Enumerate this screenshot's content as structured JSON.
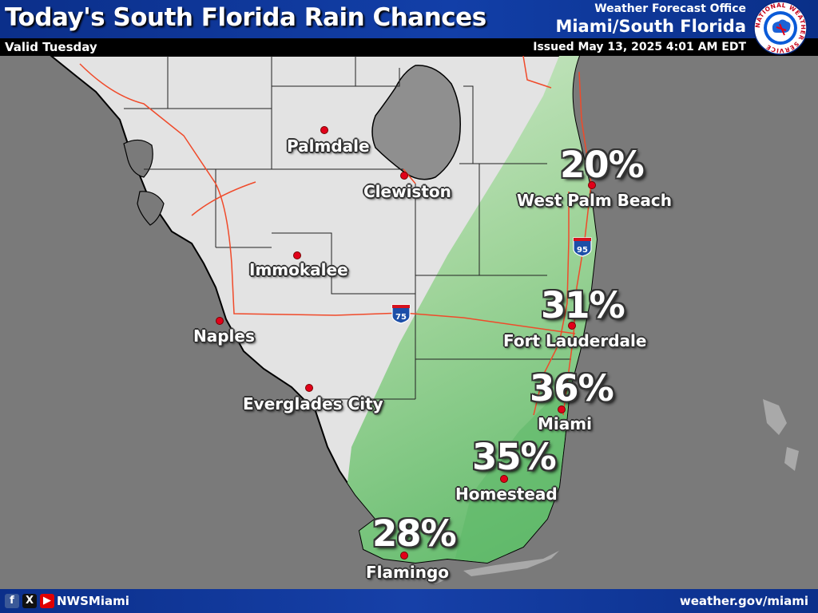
{
  "header": {
    "title": "Today's South Florida Rain Chances",
    "valid": "Valid Tuesday",
    "office_label": "Weather Forecast Office",
    "office": "Miami/South Florida",
    "issued": "Issued May 13, 2025 4:01 AM EDT",
    "logo_text": "NATIONAL WEATHER SERVICE"
  },
  "map": {
    "colors": {
      "land": "#e3e3e3",
      "water": "#7a7a7a",
      "lake": "#8f8f8f",
      "rain_light": "#c8e6c2",
      "rain_dark": "#5cb867",
      "roads": "#f04a2a",
      "counties": "#222222"
    },
    "highway_shields": [
      {
        "name": "I-95 shield",
        "number": "95"
      },
      {
        "name": "I-75 shield",
        "number": "75"
      }
    ],
    "rain_chances": [
      {
        "location": "West Palm Beach",
        "chance": "20%"
      },
      {
        "location": "Fort Lauderdale",
        "chance": "31%"
      },
      {
        "location": "Miami",
        "chance": "36%"
      },
      {
        "location": "Homestead",
        "chance": "35%"
      },
      {
        "location": "Flamingo",
        "chance": "28%"
      }
    ],
    "cities": [
      "Palmdale",
      "Clewiston",
      "Immokalee",
      "Naples",
      "Everglades City",
      "West Palm Beach",
      "Fort Lauderdale",
      "Miami",
      "Homestead",
      "Flamingo"
    ]
  },
  "footer": {
    "social_icons": [
      "facebook-icon",
      "x-icon",
      "youtube-icon"
    ],
    "social_handle": "NWSMiami",
    "website": "weather.gov/miami"
  }
}
